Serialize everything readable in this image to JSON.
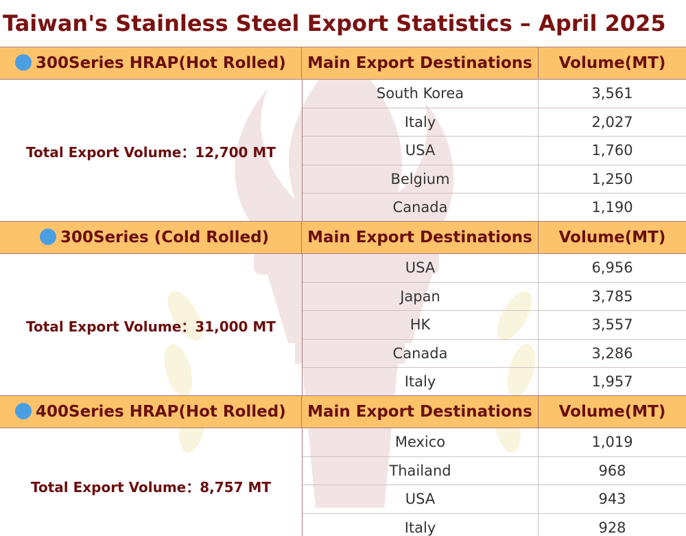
{
  "title": "Taiwan's Stainless Steel Export Statistics – April 2025",
  "columns": {
    "destinations": "Main Export Destinations",
    "volume": "Volume(MT)"
  },
  "sections": [
    {
      "name": "300Series HRAP(Hot Rolled)",
      "total": "Total Export Volume：12,700 MT",
      "rows": [
        {
          "destination": "South Korea",
          "volume": "3,561"
        },
        {
          "destination": "Italy",
          "volume": "2,027"
        },
        {
          "destination": "USA",
          "volume": "1,760"
        },
        {
          "destination": "Belgium",
          "volume": "1,250"
        },
        {
          "destination": "Canada",
          "volume": "1,190"
        }
      ]
    },
    {
      "name": "300Series (Cold Rolled)",
      "total": "Total Export Volume：31,000 MT",
      "rows": [
        {
          "destination": "USA",
          "volume": "6,956"
        },
        {
          "destination": "Japan",
          "volume": "3,785"
        },
        {
          "destination": "HK",
          "volume": "3,557"
        },
        {
          "destination": "Canada",
          "volume": "3,286"
        },
        {
          "destination": "Italy",
          "volume": "1,957"
        }
      ]
    },
    {
      "name": "400Series HRAP(Hot Rolled)",
      "total": "Total Export Volume：8,757 MT",
      "rows": [
        {
          "destination": "Mexico",
          "volume": "1,019"
        },
        {
          "destination": "Thailand",
          "volume": "968"
        },
        {
          "destination": "USA",
          "volume": "943"
        },
        {
          "destination": "Italy",
          "volume": "928"
        }
      ]
    }
  ],
  "colors": {
    "title": "#7a1212",
    "header_bg": "#fdc36b",
    "header_text": "#6b0f0f",
    "dot": "#4a9fe3"
  }
}
